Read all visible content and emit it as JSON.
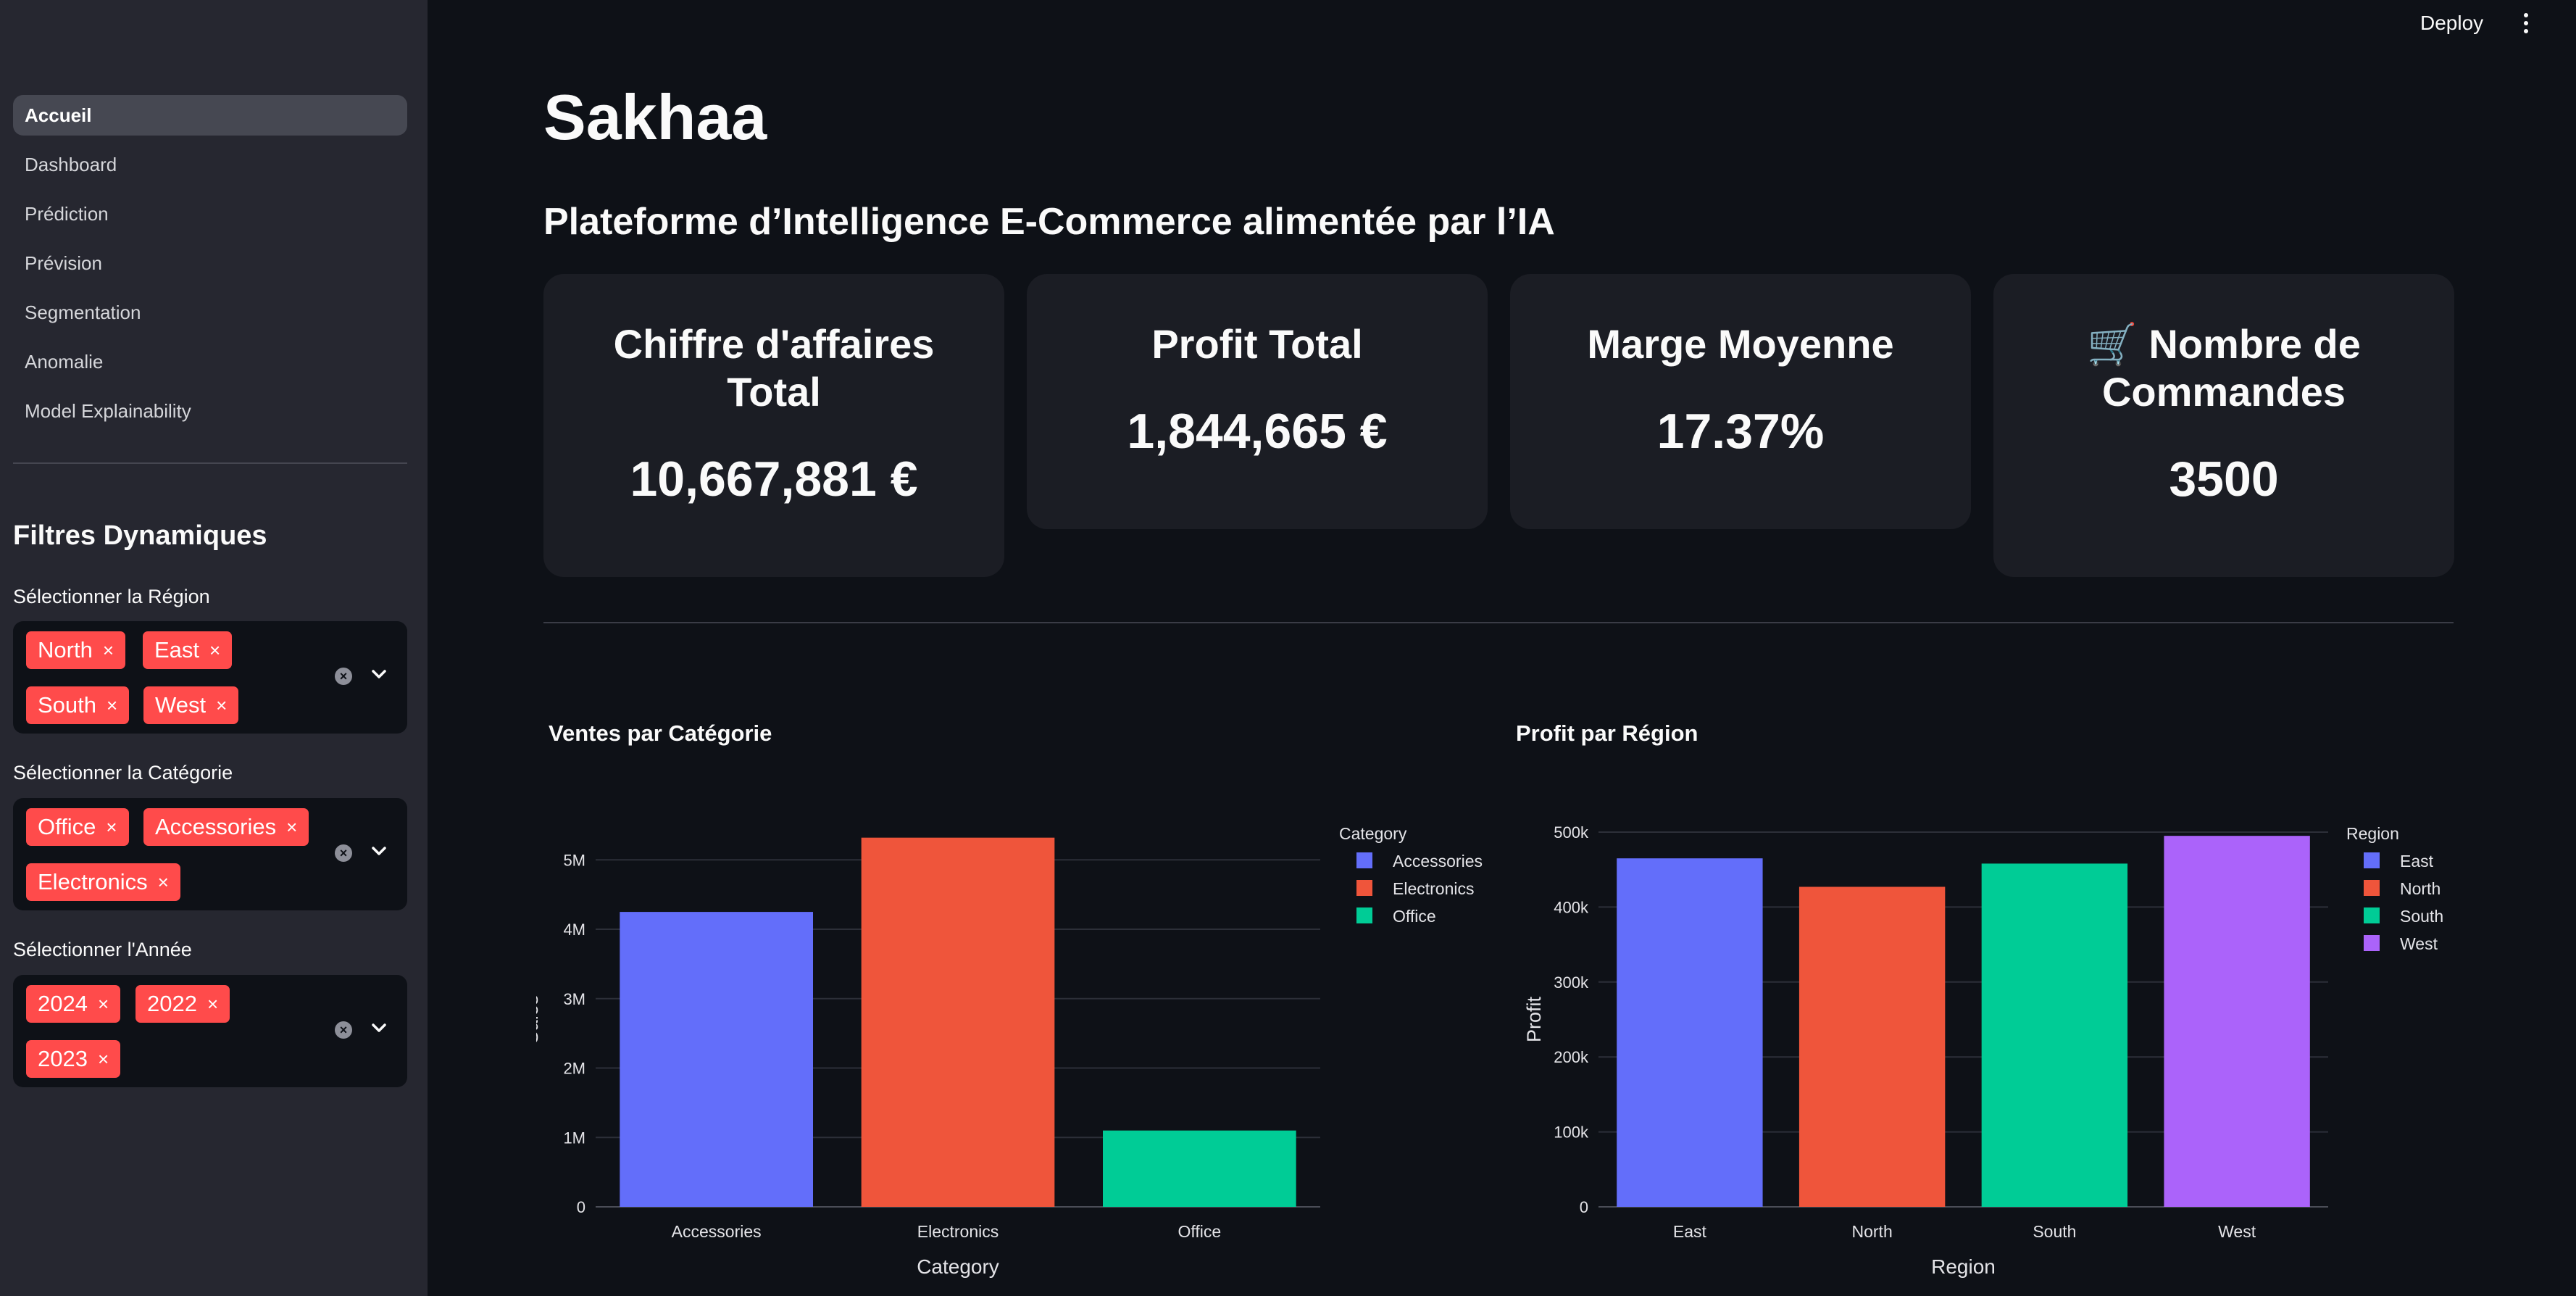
{
  "topbar": {
    "deploy_label": "Deploy",
    "menu_icon": "kebab-menu-icon"
  },
  "sidebar": {
    "nav": [
      {
        "label": "Accueil",
        "active": true
      },
      {
        "label": "Dashboard"
      },
      {
        "label": "Prédiction"
      },
      {
        "label": "Prévision"
      },
      {
        "label": "Segmentation"
      },
      {
        "label": "Anomalie"
      },
      {
        "label": "Model Explainability"
      }
    ],
    "filters_title": "Filtres Dynamiques",
    "region": {
      "label": "Sélectionner la Région",
      "tags": [
        "North",
        "East",
        "South",
        "West"
      ]
    },
    "category": {
      "label": "Sélectionner la Catégorie",
      "tags": [
        "Office",
        "Accessories",
        "Electronics"
      ]
    },
    "year": {
      "label": "Sélectionner l'Année",
      "tags": [
        "2024",
        "2022",
        "2023"
      ]
    },
    "tag_remove_glyph": "×",
    "clear_glyph": "×"
  },
  "main": {
    "title": "Sakhaa",
    "subtitle": "Plateforme d’Intelligence E-Commerce alimentée par l’IA",
    "metrics": [
      {
        "label": "Chiffre d'affaires Total",
        "value": "10,667,881 €"
      },
      {
        "label": "Profit Total",
        "value": "1,844,665 €"
      },
      {
        "label": "Marge Moyenne",
        "value": "17.37%"
      },
      {
        "label": "🛒 Nombre de Commandes",
        "value": "3500"
      }
    ]
  },
  "chart_data": [
    {
      "type": "bar",
      "title": "Ventes par Catégorie",
      "categories": [
        "Accessories",
        "Electronics",
        "Office"
      ],
      "values": [
        4250000,
        5320000,
        1100000
      ],
      "colors": [
        "#636efa",
        "#ef553b",
        "#00cc96"
      ],
      "xlabel": "Category",
      "ylabel": "Sales",
      "ylim": [
        0,
        5400000
      ],
      "yticks": [
        0,
        1000000,
        2000000,
        3000000,
        4000000,
        5000000
      ],
      "yticklabels": [
        "0",
        "1M",
        "2M",
        "3M",
        "4M",
        "5M"
      ],
      "legend_title": "Category",
      "legend": [
        "Accessories",
        "Electronics",
        "Office"
      ],
      "legend_position": "top-right",
      "grid": true
    },
    {
      "type": "bar",
      "title": "Profit par Région",
      "categories": [
        "East",
        "North",
        "South",
        "West"
      ],
      "values": [
        465000,
        427000,
        458000,
        495000
      ],
      "colors": [
        "#636efa",
        "#ef553b",
        "#00cc96",
        "#ab63fa"
      ],
      "xlabel": "Region",
      "ylabel": "Profit",
      "ylim": [
        0,
        500000
      ],
      "yticks": [
        0,
        100000,
        200000,
        300000,
        400000,
        500000
      ],
      "yticklabels": [
        "0",
        "100k",
        "200k",
        "300k",
        "400k",
        "500k"
      ],
      "legend_title": "Region",
      "legend": [
        "East",
        "North",
        "South",
        "West"
      ],
      "legend_position": "top-right",
      "grid": true
    }
  ]
}
